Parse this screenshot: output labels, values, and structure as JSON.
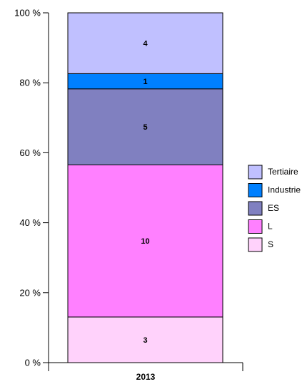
{
  "chart_data": {
    "type": "bar",
    "stacked": true,
    "normalized": true,
    "categories": [
      "2013"
    ],
    "series": [
      {
        "name": "S",
        "values": [
          3
        ],
        "color": "#ffd2fb"
      },
      {
        "name": "L",
        "values": [
          10
        ],
        "color": "#ff80ff"
      },
      {
        "name": "ES",
        "values": [
          5
        ],
        "color": "#8080c0"
      },
      {
        "name": "Industrie",
        "values": [
          1
        ],
        "color": "#0080ff"
      },
      {
        "name": "Tertiaire",
        "values": [
          4
        ],
        "color": "#c0c0ff"
      }
    ],
    "yticks": [
      "0 %",
      "20 %",
      "40 %",
      "60 %",
      "80 %",
      "100 %"
    ],
    "ylim": [
      0,
      100
    ],
    "legend_position": "right",
    "legend_order": [
      "Tertiaire",
      "Industrie",
      "ES",
      "L",
      "S"
    ],
    "grid": false
  }
}
